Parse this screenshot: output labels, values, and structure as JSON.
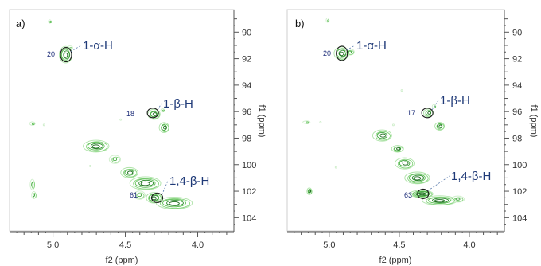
{
  "panels": [
    {
      "letter": "a)",
      "xlabel": "f2 (ppm)",
      "ylabel": "f1 (ppm)",
      "x_ticks": [
        5.0,
        4.5,
        4.0
      ],
      "x_tick_labels": [
        "5.0",
        "4.5",
        "4.0"
      ],
      "y_ticks": [
        90,
        92,
        94,
        96,
        98,
        100,
        102,
        104
      ],
      "y_tick_labels": [
        "90",
        "92",
        "94",
        "96",
        "98",
        "100",
        "102",
        "104"
      ],
      "xlim": [
        5.3,
        3.75
      ],
      "ylim": [
        88.3,
        105.0
      ],
      "annotations": [
        {
          "label": "1-α-H",
          "value": "20",
          "x": 4.91,
          "y": 91.7
        },
        {
          "label": "1-β-H",
          "value": "18",
          "x": 4.31,
          "y": 96.1
        },
        {
          "label": "1,4-β-H",
          "value": "61",
          "x": 4.28,
          "y": 102.5
        }
      ],
      "peaks": [
        {
          "x": 4.91,
          "y": 91.7,
          "w": 0.05,
          "h": 1.4,
          "rings": 5
        },
        {
          "x": 4.88,
          "y": 91.2,
          "w": 0.03,
          "h": 0.5,
          "rings": 2
        },
        {
          "x": 5.02,
          "y": 89.2,
          "w": 0.015,
          "h": 0.4,
          "rings": 2
        },
        {
          "x": 4.3,
          "y": 96.2,
          "w": 0.05,
          "h": 0.9,
          "rings": 4
        },
        {
          "x": 4.23,
          "y": 97.2,
          "w": 0.04,
          "h": 0.9,
          "rings": 4
        },
        {
          "x": 4.24,
          "y": 95.9,
          "w": 0.02,
          "h": 0.4,
          "rings": 2
        },
        {
          "x": 5.14,
          "y": 96.9,
          "w": 0.03,
          "h": 0.4,
          "rings": 2
        },
        {
          "x": 5.06,
          "y": 97.0,
          "w": 0.02,
          "h": 0.3,
          "rings": 1
        },
        {
          "x": 4.53,
          "y": 96.6,
          "w": 0.02,
          "h": 0.3,
          "rings": 1
        },
        {
          "x": 4.7,
          "y": 98.6,
          "w": 0.1,
          "h": 1.0,
          "rings": 5
        },
        {
          "x": 4.57,
          "y": 99.6,
          "w": 0.05,
          "h": 0.8,
          "rings": 3
        },
        {
          "x": 4.47,
          "y": 100.6,
          "w": 0.07,
          "h": 0.9,
          "rings": 4
        },
        {
          "x": 4.36,
          "y": 101.4,
          "w": 0.12,
          "h": 1.1,
          "rings": 5
        },
        {
          "x": 4.3,
          "y": 102.5,
          "w": 0.06,
          "h": 0.9,
          "rings": 5
        },
        {
          "x": 4.16,
          "y": 102.9,
          "w": 0.14,
          "h": 1.0,
          "rings": 5
        },
        {
          "x": 4.4,
          "y": 102.3,
          "w": 0.05,
          "h": 0.8,
          "rings": 3
        },
        {
          "x": 5.14,
          "y": 101.5,
          "w": 0.02,
          "h": 1.0,
          "rings": 3
        },
        {
          "x": 5.13,
          "y": 102.3,
          "w": 0.02,
          "h": 0.7,
          "rings": 3
        },
        {
          "x": 4.74,
          "y": 100.1,
          "w": 0.02,
          "h": 0.3,
          "rings": 1
        }
      ]
    },
    {
      "letter": "b)",
      "xlabel": "f2 (ppm)",
      "ylabel": "f1 (ppm)",
      "x_ticks": [
        5.0,
        4.5,
        4.0
      ],
      "x_tick_labels": [
        "5.0",
        "4.5",
        "4.0"
      ],
      "y_ticks": [
        90,
        92,
        94,
        96,
        98,
        100,
        102,
        104
      ],
      "y_tick_labels": [
        "90",
        "92",
        "94",
        "96",
        "98",
        "100",
        "102",
        "104"
      ],
      "xlim": [
        5.3,
        3.75
      ],
      "ylim": [
        88.3,
        105.0
      ],
      "annotations": [
        {
          "label": "1-α-H",
          "value": "20",
          "x": 4.91,
          "y": 91.6
        },
        {
          "label": "1-β-H",
          "value": "17",
          "x": 4.3,
          "y": 96.1
        },
        {
          "label": "1,4-β-H",
          "value": "63",
          "x": 4.33,
          "y": 102.2
        }
      ],
      "peaks": [
        {
          "x": 4.91,
          "y": 91.6,
          "w": 0.06,
          "h": 1.1,
          "rings": 5
        },
        {
          "x": 4.85,
          "y": 91.5,
          "w": 0.04,
          "h": 0.6,
          "rings": 3
        },
        {
          "x": 5.01,
          "y": 89.1,
          "w": 0.015,
          "h": 0.5,
          "rings": 2
        },
        {
          "x": 4.29,
          "y": 96.1,
          "w": 0.04,
          "h": 0.7,
          "rings": 4
        },
        {
          "x": 4.21,
          "y": 97.1,
          "w": 0.04,
          "h": 0.7,
          "rings": 4
        },
        {
          "x": 4.25,
          "y": 95.6,
          "w": 0.02,
          "h": 0.4,
          "rings": 2
        },
        {
          "x": 4.48,
          "y": 94.4,
          "w": 0.015,
          "h": 0.2,
          "rings": 1
        },
        {
          "x": 5.16,
          "y": 96.8,
          "w": 0.04,
          "h": 0.3,
          "rings": 2
        },
        {
          "x": 5.06,
          "y": 96.8,
          "w": 0.02,
          "h": 0.3,
          "rings": 1
        },
        {
          "x": 4.54,
          "y": 97.0,
          "w": 0.02,
          "h": 0.3,
          "rings": 1
        },
        {
          "x": 4.62,
          "y": 97.8,
          "w": 0.08,
          "h": 1.0,
          "rings": 4
        },
        {
          "x": 4.51,
          "y": 98.8,
          "w": 0.05,
          "h": 0.6,
          "rings": 4
        },
        {
          "x": 4.46,
          "y": 99.9,
          "w": 0.08,
          "h": 1.0,
          "rings": 4
        },
        {
          "x": 4.37,
          "y": 101.0,
          "w": 0.1,
          "h": 1.0,
          "rings": 5
        },
        {
          "x": 4.34,
          "y": 102.2,
          "w": 0.09,
          "h": 0.6,
          "rings": 6
        },
        {
          "x": 4.21,
          "y": 102.7,
          "w": 0.14,
          "h": 0.8,
          "rings": 5
        },
        {
          "x": 4.08,
          "y": 102.6,
          "w": 0.06,
          "h": 0.6,
          "rings": 3
        },
        {
          "x": 5.14,
          "y": 102.0,
          "w": 0.02,
          "h": 0.6,
          "rings": 4
        },
        {
          "x": 4.95,
          "y": 100.2,
          "w": 0.015,
          "h": 0.2,
          "rings": 1
        }
      ]
    }
  ]
}
